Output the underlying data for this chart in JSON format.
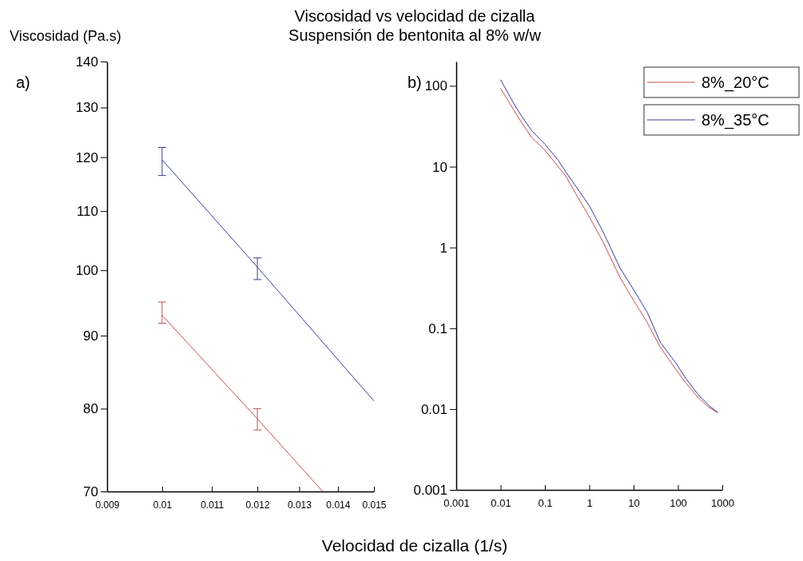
{
  "chart_data": [
    {
      "type": "line",
      "title": "Viscosidad vs velocidad de cizalla",
      "subtitle": "Suspensión de bentonita al 8% w/w",
      "xlabel": "Velocidad de cizalla (1/s)",
      "ylabel": "Viscosidad (Pa.s)",
      "annotations": [
        "a)"
      ],
      "log": "xy",
      "marker": "none",
      "line_style": "solid",
      "grid": false,
      "legend": false,
      "xlim": [
        0.009,
        0.015
      ],
      "xticks": [
        0.009,
        0.01,
        0.011,
        0.012,
        0.013,
        0.014,
        0.015
      ],
      "ylim": [
        70,
        140
      ],
      "yticks": [
        70,
        80,
        90,
        100,
        110,
        120,
        130,
        140
      ],
      "series": [
        {
          "color": "#c0504d",
          "x": [
            0.01,
            0.012,
            0.0136
          ],
          "values": [
            93,
            78.7,
            70
          ],
          "errors": [
            [
              91.8,
              95
            ],
            [
              77.3,
              80
            ],
            null
          ]
        },
        {
          "color": "#3a3a9c",
          "x": [
            0.01,
            0.012,
            0.015
          ],
          "values": [
            119.5,
            100.5,
            81
          ],
          "errors": [
            [
              116.5,
              121.9
            ],
            [
              98.5,
              102
            ],
            null
          ]
        }
      ]
    },
    {
      "type": "line",
      "annotations": [
        "b)"
      ],
      "log": "xy",
      "marker": "none",
      "line_style": "solid",
      "grid": false,
      "legend": "top right",
      "xlim": [
        0.001,
        1000
      ],
      "xticks": [
        0.001,
        0.01,
        0.1,
        1,
        10,
        100,
        1000
      ],
      "ylim": [
        0.001,
        200
      ],
      "yticks": [
        0.001,
        0.01,
        0.1,
        1,
        10,
        100
      ],
      "series": [
        {
          "name": "8%_20°C",
          "color": "#c0504d",
          "x": [
            0.01,
            0.015,
            0.02,
            0.03,
            0.05,
            0.1,
            0.2,
            0.3,
            0.5,
            1,
            2,
            3,
            5,
            10,
            20,
            40,
            90,
            150,
            280,
            500,
            800
          ],
          "values": [
            93,
            65,
            50,
            35,
            23,
            16,
            10,
            7.5,
            4.6,
            2.4,
            1.2,
            0.75,
            0.42,
            0.22,
            0.12,
            0.058,
            0.031,
            0.021,
            0.014,
            0.0105,
            0.009
          ]
        },
        {
          "name": "8%_35°C",
          "color": "#3a3a9c",
          "x": [
            0.01,
            0.015,
            0.02,
            0.03,
            0.05,
            0.1,
            0.2,
            0.3,
            0.5,
            1,
            2,
            3,
            5,
            10,
            20,
            40,
            90,
            150,
            280,
            500,
            800
          ],
          "values": [
            119,
            80,
            60,
            42,
            28,
            19,
            12,
            8.5,
            5.7,
            3.3,
            1.6,
            1.0,
            0.55,
            0.3,
            0.16,
            0.067,
            0.037,
            0.024,
            0.0153,
            0.011,
            0.0091
          ]
        }
      ]
    }
  ]
}
